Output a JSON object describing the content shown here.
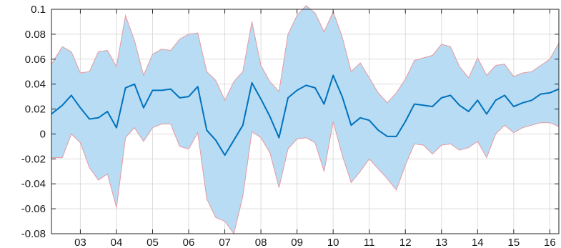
{
  "chart_data": {
    "type": "area",
    "title": "",
    "xlabel": "",
    "ylabel": "",
    "xlim": [
      2002.2,
      2016.25
    ],
    "ylim": [
      -0.08,
      0.1
    ],
    "grid": true,
    "legend": "none",
    "x_ticks": [
      2003,
      2004,
      2005,
      2006,
      2007,
      2008,
      2009,
      2010,
      2011,
      2012,
      2013,
      2014,
      2015,
      2016
    ],
    "x_tick_labels": [
      "03",
      "04",
      "05",
      "06",
      "07",
      "08",
      "09",
      "10",
      "11",
      "12",
      "13",
      "14",
      "15",
      "16"
    ],
    "y_ticks": [
      -0.08,
      -0.06,
      -0.04,
      -0.02,
      0,
      0.02,
      0.04,
      0.06,
      0.08,
      0.1
    ],
    "y_tick_labels": [
      "-0.08",
      "-0.06",
      "-0.04",
      "-0.02",
      "0",
      "0.02",
      "0.04",
      "0.06",
      "0.08",
      "0.1"
    ],
    "x": [
      2002.2,
      2002.5,
      2002.75,
      2003.0,
      2003.25,
      2003.5,
      2003.75,
      2004.0,
      2004.25,
      2004.5,
      2004.75,
      2005.0,
      2005.25,
      2005.5,
      2005.75,
      2006.0,
      2006.25,
      2006.5,
      2006.75,
      2007.0,
      2007.25,
      2007.5,
      2007.75,
      2008.0,
      2008.25,
      2008.5,
      2008.75,
      2009.0,
      2009.25,
      2009.5,
      2009.75,
      2010.0,
      2010.25,
      2010.5,
      2010.75,
      2011.0,
      2011.25,
      2011.5,
      2011.75,
      2012.0,
      2012.25,
      2012.5,
      2012.75,
      2013.0,
      2013.25,
      2013.5,
      2013.75,
      2014.0,
      2014.25,
      2014.5,
      2014.75,
      2015.0,
      2015.25,
      2015.5,
      2015.75,
      2016.0,
      2016.25
    ],
    "series": [
      {
        "name": "",
        "color": "#0072bd",
        "values": [
          0.016,
          0.023,
          0.031,
          0.021,
          0.012,
          0.013,
          0.018,
          0.005,
          0.037,
          0.04,
          0.021,
          0.035,
          0.035,
          0.036,
          0.029,
          0.03,
          0.038,
          0.003,
          -0.005,
          -0.017,
          -0.005,
          0.007,
          0.041,
          0.028,
          0.014,
          -0.003,
          0.029,
          0.035,
          0.039,
          0.037,
          0.024,
          0.047,
          0.03,
          0.007,
          0.013,
          0.011,
          0.003,
          -0.002,
          -0.002,
          0.01,
          0.024,
          0.023,
          0.022,
          0.029,
          0.031,
          0.023,
          0.018,
          0.027,
          0.016,
          0.027,
          0.031,
          0.022,
          0.025,
          0.027,
          0.032,
          0.033,
          0.036
        ]
      }
    ],
    "band": {
      "fill_color": "#b7dcf4",
      "edge_color": "#e8989e",
      "upper": [
        0.056,
        0.07,
        0.066,
        0.049,
        0.05,
        0.066,
        0.067,
        0.054,
        0.095,
        0.075,
        0.047,
        0.064,
        0.068,
        0.067,
        0.076,
        0.08,
        0.081,
        0.05,
        0.043,
        0.027,
        0.042,
        0.05,
        0.09,
        0.055,
        0.042,
        0.034,
        0.08,
        0.095,
        0.103,
        0.097,
        0.082,
        0.098,
        0.078,
        0.05,
        0.057,
        0.045,
        0.033,
        0.025,
        0.033,
        0.044,
        0.059,
        0.061,
        0.063,
        0.072,
        0.07,
        0.054,
        0.045,
        0.061,
        0.047,
        0.055,
        0.056,
        0.046,
        0.049,
        0.05,
        0.055,
        0.06,
        0.073
      ],
      "lower": [
        -0.019,
        -0.019,
        0.0,
        -0.007,
        -0.027,
        -0.037,
        -0.032,
        -0.059,
        -0.003,
        0.005,
        -0.006,
        0.005,
        0.008,
        0.008,
        -0.01,
        -0.012,
        0.001,
        -0.052,
        -0.067,
        -0.07,
        -0.08,
        -0.05,
        0.002,
        -0.003,
        -0.015,
        -0.043,
        -0.012,
        -0.004,
        -0.003,
        -0.007,
        -0.03,
        0.01,
        -0.017,
        -0.039,
        -0.03,
        -0.02,
        -0.028,
        -0.036,
        -0.045,
        -0.025,
        -0.008,
        -0.009,
        -0.016,
        -0.009,
        -0.008,
        -0.013,
        -0.011,
        -0.006,
        -0.019,
        0.0,
        0.007,
        0.001,
        0.005,
        0.007,
        0.009,
        0.009,
        0.006
      ]
    }
  }
}
